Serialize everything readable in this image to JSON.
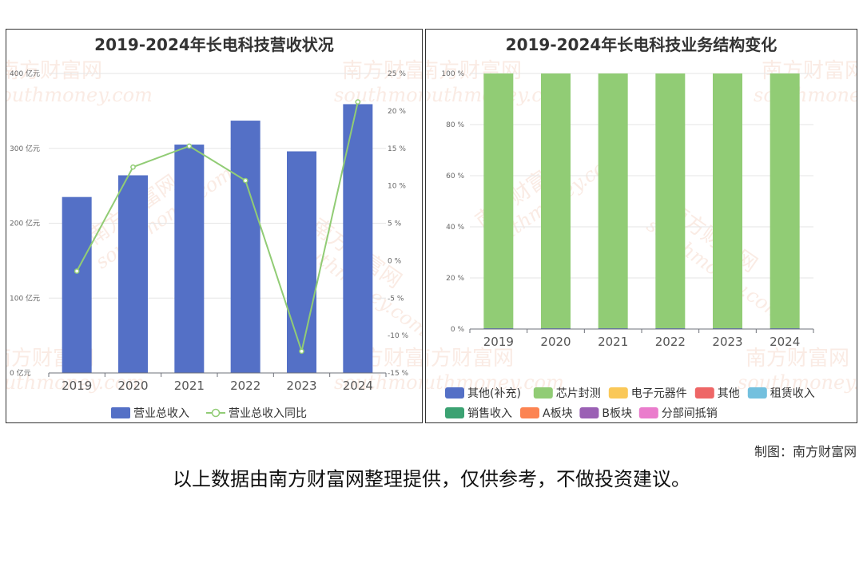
{
  "chart_data": [
    {
      "type": "bar",
      "title": "2019-2024年长电科技营收状况",
      "categories": [
        "2019",
        "2020",
        "2021",
        "2022",
        "2023",
        "2024"
      ],
      "series": [
        {
          "name": "营业总收入",
          "type": "bar",
          "axis": "left",
          "color": "#5470c6",
          "values": [
            235,
            264,
            305,
            337,
            296,
            359
          ]
        },
        {
          "name": "营业总收入同比",
          "type": "line",
          "axis": "right",
          "color": "#91cc75",
          "values": [
            -1.4,
            12.5,
            15.3,
            10.7,
            -12.1,
            21.2
          ]
        }
      ],
      "y_left": {
        "min": 0,
        "max": 400,
        "ticks": [
          0,
          100,
          200,
          300,
          400
        ],
        "tick_labels": [
          "0 亿元",
          "100 亿元",
          "200 亿元",
          "300 亿元",
          "400 亿元"
        ]
      },
      "y_right": {
        "min": -15,
        "max": 25,
        "ticks": [
          -15,
          -10,
          -5,
          0,
          5,
          10,
          15,
          20,
          25
        ],
        "tick_labels": [
          "-15 %",
          "-10 %",
          "-5 %",
          "0 %",
          "5 %",
          "10 %",
          "15 %",
          "20 %",
          "25 %"
        ]
      },
      "grid": true,
      "legend_position": "bottom-center",
      "legend": [
        "营业总收入",
        "营业总收入同比"
      ]
    },
    {
      "type": "bar",
      "stacked": true,
      "title": "2019-2024年长电科技业务结构变化",
      "categories": [
        "2019",
        "2020",
        "2021",
        "2022",
        "2023",
        "2024"
      ],
      "series": [
        {
          "name": "其他(补充)",
          "color": "#5470c6",
          "values": [
            0.3,
            0.3,
            0.3,
            0.3,
            0.3,
            0.3
          ]
        },
        {
          "name": "芯片封测",
          "color": "#91cc75",
          "values": [
            99.7,
            99.7,
            99.7,
            99.7,
            99.7,
            99.7
          ]
        },
        {
          "name": "电子元器件",
          "color": "#fac858",
          "values": [
            0,
            0,
            0,
            0,
            0,
            0
          ]
        },
        {
          "name": "其他",
          "color": "#ee6666",
          "values": [
            0,
            0,
            0,
            0,
            0,
            0
          ]
        },
        {
          "name": "租赁收入",
          "color": "#73c0de",
          "values": [
            0,
            0,
            0,
            0,
            0,
            0
          ]
        },
        {
          "name": "销售收入",
          "color": "#3ba272",
          "values": [
            0,
            0,
            0,
            0,
            0,
            0
          ]
        },
        {
          "name": "A板块",
          "color": "#fc8452",
          "values": [
            0,
            0,
            0,
            0,
            0,
            0
          ]
        },
        {
          "name": "B板块",
          "color": "#9a60b4",
          "values": [
            0,
            0,
            0,
            0,
            0,
            0
          ]
        },
        {
          "name": "分部间抵销",
          "color": "#ea7ccc",
          "values": [
            0,
            0,
            0,
            0,
            0,
            0
          ]
        }
      ],
      "y": {
        "min": 0,
        "max": 100,
        "ticks": [
          0,
          20,
          40,
          60,
          80,
          100
        ],
        "tick_labels": [
          "0 %",
          "20 %",
          "40 %",
          "60 %",
          "80 %",
          "100 %"
        ]
      },
      "grid": true,
      "legend_position": "bottom-center"
    }
  ],
  "watermark": {
    "cn": "南方财富网",
    "en": "southmoney.com",
    "color": "#f6dccf"
  },
  "footer": {
    "credit": "制图：南方财富网",
    "disclaimer": "以上数据由南方财富网整理提供，仅供参考，不做投资建议。"
  }
}
